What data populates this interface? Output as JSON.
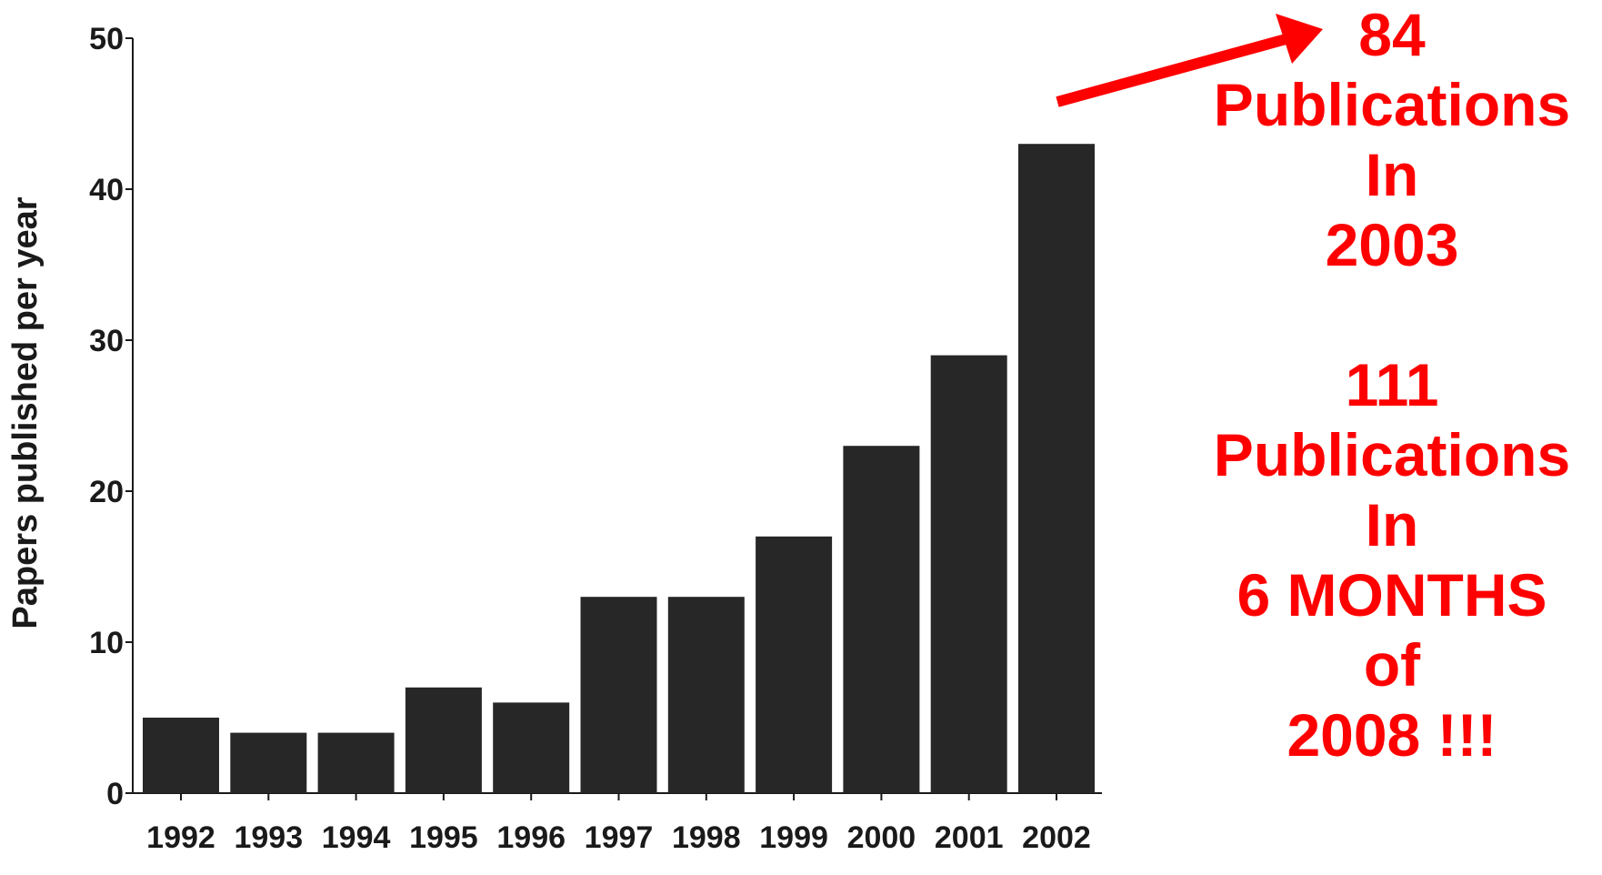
{
  "chart_data": {
    "type": "bar",
    "categories": [
      "1992",
      "1993",
      "1994",
      "1995",
      "1996",
      "1997",
      "1998",
      "1999",
      "2000",
      "2001",
      "2002"
    ],
    "values": [
      5,
      4,
      4,
      7,
      6,
      13,
      13,
      17,
      23,
      29,
      43
    ],
    "title": "",
    "xlabel": "",
    "ylabel": "Papers published per year",
    "ylim": [
      0,
      50
    ],
    "yticks": [
      0,
      10,
      20,
      30,
      40,
      50
    ],
    "grid": false,
    "bar_color": "#272727",
    "axis_color": "#1a1a1a"
  },
  "annotation": {
    "color": "#ff0000",
    "arrow": "red arrow pointing up-right from the 2002 bar toward the annotation",
    "block1": {
      "line1": "84",
      "line2": "Publications",
      "line3": "In",
      "line4": "2003"
    },
    "block2": {
      "line1": "111",
      "line2": "Publications",
      "line3": "In",
      "line4": "6 MONTHS",
      "line5": "of",
      "line6": "2008 !!!"
    }
  }
}
